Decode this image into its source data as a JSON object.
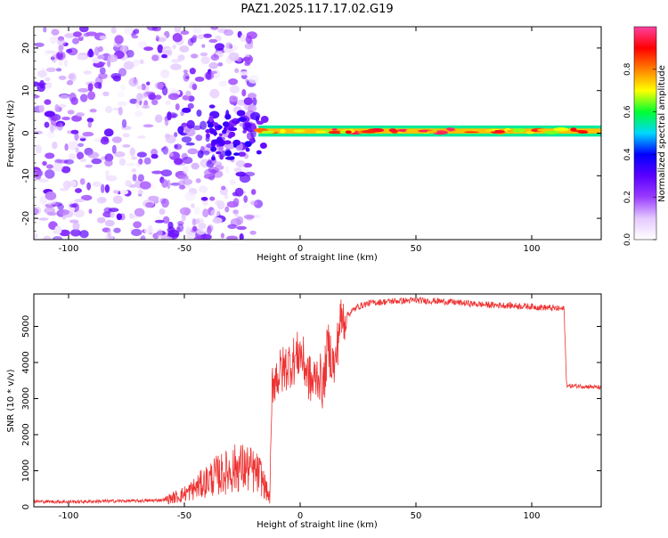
{
  "title": "PAZ1.2025.117.17.02.G19",
  "chart_data": [
    {
      "type": "heatmap",
      "xlabel": "Height of straight line (km)",
      "ylabel": "Frequency (Hz)",
      "xlim": [
        -115,
        130
      ],
      "ylim": [
        -25,
        25
      ],
      "x_ticks": [
        -100,
        -50,
        0,
        50,
        100
      ],
      "y_ticks": [
        -20,
        -10,
        0,
        10,
        20
      ],
      "colorbar": {
        "label": "Normalized spectral amplitude",
        "range": [
          0,
          1
        ],
        "ticks": [
          "0.0",
          "0.2",
          "0.4",
          "0.6",
          "0.8"
        ],
        "colors": [
          "#ffffff",
          "#e4c9ff",
          "#9a3cff",
          "#5a00ff",
          "#0000ff",
          "#00d8ff",
          "#00ff30",
          "#ffff00",
          "#ff8000",
          "#ff0000",
          "#ff40a0"
        ]
      },
      "features": {
        "noise_region_x": [
          -115,
          -18
        ],
        "signal_line_x": [
          -18,
          130
        ],
        "signal_frequency_hz": 0.5,
        "peak_amplitude": 0.9
      }
    },
    {
      "type": "line",
      "xlabel": "Height of straight line (km)",
      "ylabel": "SNR (10 * v/v)",
      "xlim": [
        -115,
        130
      ],
      "ylim": [
        0,
        5900
      ],
      "x_ticks": [
        -100,
        -50,
        0,
        50,
        100
      ],
      "y_ticks": [
        0,
        1000,
        2000,
        3000,
        4000,
        5000
      ],
      "color": "#ee3333",
      "series": [
        {
          "x": [
            -115,
            -100,
            -80,
            -65,
            -58,
            -52,
            -47,
            -42,
            -37,
            -32,
            -27,
            -22,
            -17,
            -13,
            -12,
            -8,
            -5,
            -2,
            0,
            2,
            5,
            8,
            10,
            12,
            15,
            17,
            20,
            25,
            30,
            40,
            50,
            60,
            70,
            80,
            90,
            100,
            110,
            114,
            115,
            116,
            120,
            125,
            130
          ],
          "y": [
            150,
            140,
            160,
            170,
            200,
            300,
            450,
            650,
            850,
            950,
            1100,
            1050,
            850,
            200,
            3500,
            3750,
            3950,
            4100,
            4300,
            3900,
            3400,
            3700,
            3300,
            4500,
            3800,
            5100,
            5300,
            5550,
            5650,
            5700,
            5720,
            5700,
            5650,
            5600,
            5580,
            5550,
            5500,
            5480,
            3400,
            3350,
            3350,
            3330,
            3300
          ]
        }
      ]
    }
  ]
}
